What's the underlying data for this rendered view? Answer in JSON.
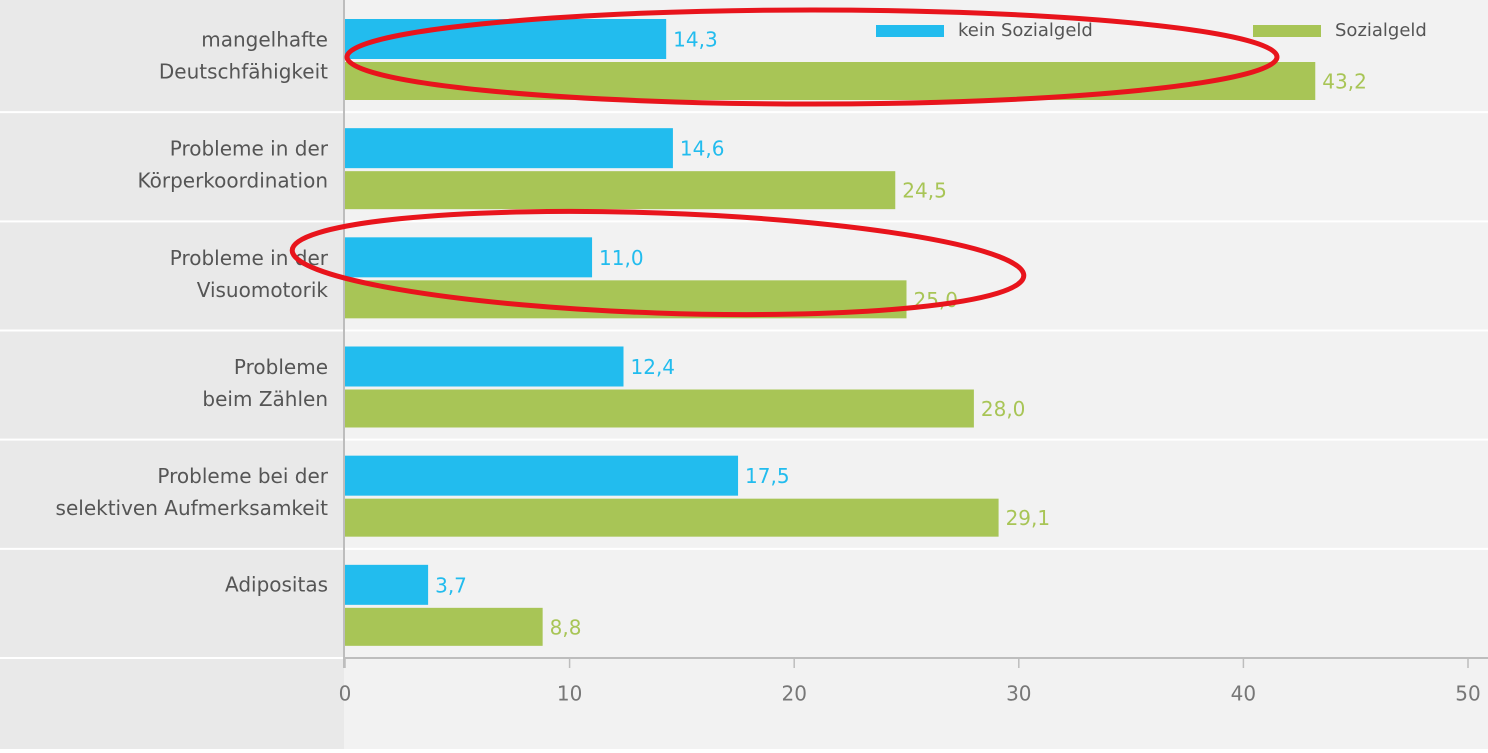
{
  "chart_data": {
    "type": "barh",
    "categories": [
      [
        "mangelhafte",
        "Deutschfähigkeit"
      ],
      [
        "Probleme in der",
        "Körperkoordination"
      ],
      [
        "Probleme in der",
        "Visuomotorik"
      ],
      [
        "Probleme",
        "beim Zählen"
      ],
      [
        "Probleme bei der",
        "selektiven Aufmerksamkeit"
      ],
      [
        "Adipositas"
      ]
    ],
    "series": [
      {
        "name": "kein Sozialgeld",
        "color": "#22bcee",
        "values": [
          14.3,
          14.6,
          11.0,
          12.4,
          17.5,
          3.7
        ],
        "value_labels": [
          "14,3",
          "14,6",
          "11,0",
          "12,4",
          "17,5",
          "3,7"
        ]
      },
      {
        "name": "Sozialgeld",
        "color": "#a8c556",
        "values": [
          43.2,
          24.5,
          25.0,
          28.0,
          29.1,
          8.8
        ],
        "value_labels": [
          "43,2",
          "24,5",
          "25,0",
          "28,0",
          "29,1",
          "8,8"
        ]
      }
    ],
    "xlim": [
      0,
      50
    ],
    "xticks": [
      0,
      10,
      20,
      30,
      40,
      50
    ],
    "legend": "top-right"
  }
}
